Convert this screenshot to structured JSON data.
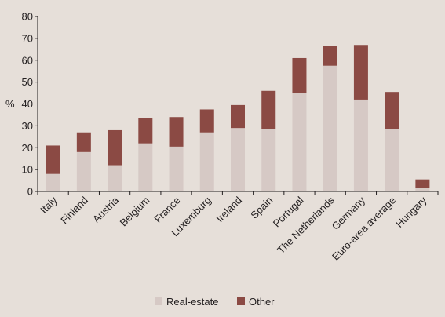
{
  "colors": {
    "background": "#e6dfd9",
    "axis": "#231f20",
    "real_estate": "#d6c9c5",
    "other": "#8b4a44",
    "legend_border": "#8b4a44"
  },
  "chart_data": {
    "type": "bar",
    "stacked": true,
    "ylabel": "%",
    "ylim": [
      0,
      80
    ],
    "yticks": [
      0,
      10,
      20,
      30,
      40,
      50,
      60,
      70,
      80
    ],
    "grid": false,
    "legend_position": "bottom-center",
    "categories": [
      "Italy",
      "Finland",
      "Austria",
      "Belgium",
      "France",
      "Luxemburg",
      "Ireland",
      "Spain",
      "Portugal",
      "The Netherlands",
      "Germany",
      "Euro-area average",
      "Hungary"
    ],
    "series": [
      {
        "name": "Real-estate",
        "color": "#d6c9c5",
        "values": [
          8,
          18,
          12,
          22,
          20.5,
          27,
          29,
          28.5,
          45,
          57.5,
          42,
          28.5,
          1.5
        ]
      },
      {
        "name": "Other",
        "color": "#8b4a44",
        "values": [
          13,
          9,
          16,
          11.5,
          13.5,
          10.5,
          10.5,
          17.5,
          16,
          9,
          25,
          17,
          4
        ]
      }
    ]
  }
}
